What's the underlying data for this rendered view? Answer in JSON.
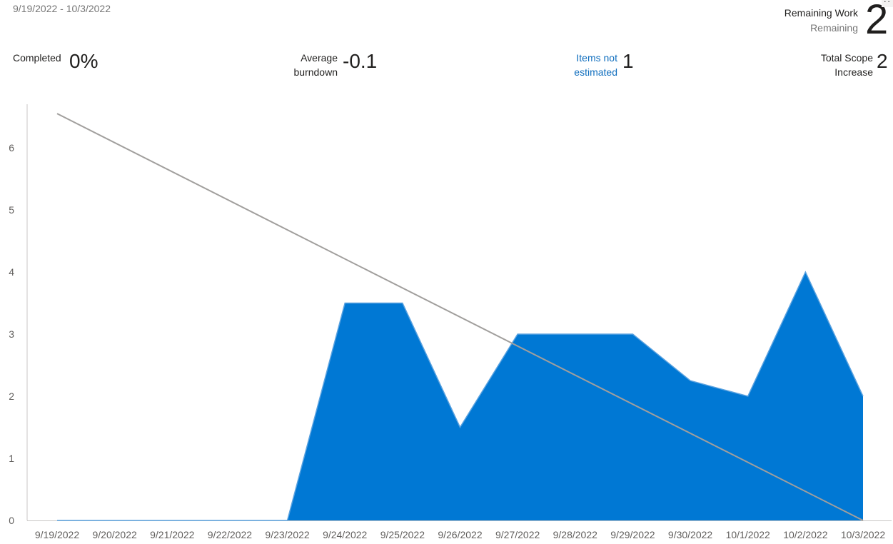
{
  "header": {
    "date_range": "9/19/2022 - 10/3/2022",
    "remaining_label": "Remaining Work",
    "remaining_sublabel": "Remaining",
    "remaining_value": "2",
    "more_icon": "ellipsis-icon"
  },
  "stats": {
    "completed_label": "Completed",
    "completed_value": "0%",
    "avg_label_1": "Average",
    "avg_label_2": "burndown",
    "avg_value": "-0.1",
    "items_label_1": "Items not",
    "items_label_2": "estimated",
    "items_value": "1",
    "scope_label_1": "Total Scope",
    "scope_label_2": "Increase",
    "scope_value": "2"
  },
  "colors": {
    "area": "#0078d4",
    "ideal_line": "#a19f9d",
    "axis": "#c8c6c4",
    "tick_text": "#605e5c",
    "link": "#106ebe"
  },
  "chart_data": {
    "type": "area",
    "categories": [
      "9/19/2022",
      "9/20/2022",
      "9/21/2022",
      "9/22/2022",
      "9/23/2022",
      "9/24/2022",
      "9/25/2022",
      "9/26/2022",
      "9/27/2022",
      "9/28/2022",
      "9/29/2022",
      "9/30/2022",
      "10/1/2022",
      "10/2/2022",
      "10/3/2022"
    ],
    "series": [
      {
        "values": [
          0,
          0,
          0,
          0,
          0,
          3.5,
          3.5,
          1.5,
          3,
          3,
          3,
          2.25,
          2,
          4,
          2
        ]
      }
    ],
    "ideal_trend": {
      "start": 6.55,
      "end": 0
    },
    "ylim": [
      0,
      7
    ],
    "yticks": [
      0,
      1,
      2,
      3,
      4,
      5,
      6
    ],
    "grid": false,
    "legend": "none"
  }
}
